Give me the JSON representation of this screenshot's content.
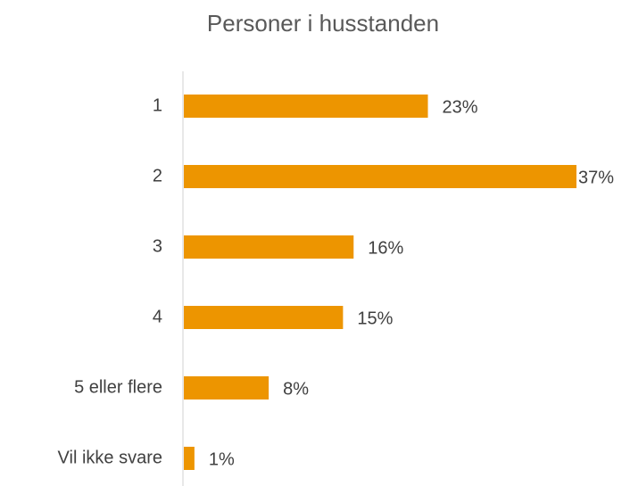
{
  "chart_data": {
    "type": "bar",
    "orientation": "horizontal",
    "title": "Personer i husstanden",
    "categories": [
      "1",
      "2",
      "3",
      "4",
      "5 eller flere",
      "Vil ikke svare"
    ],
    "values": [
      23,
      37,
      16,
      15,
      8,
      1
    ],
    "value_labels": [
      "23%",
      "37%",
      "16%",
      "15%",
      "8%",
      "1%"
    ],
    "color": "#ed9500"
  }
}
